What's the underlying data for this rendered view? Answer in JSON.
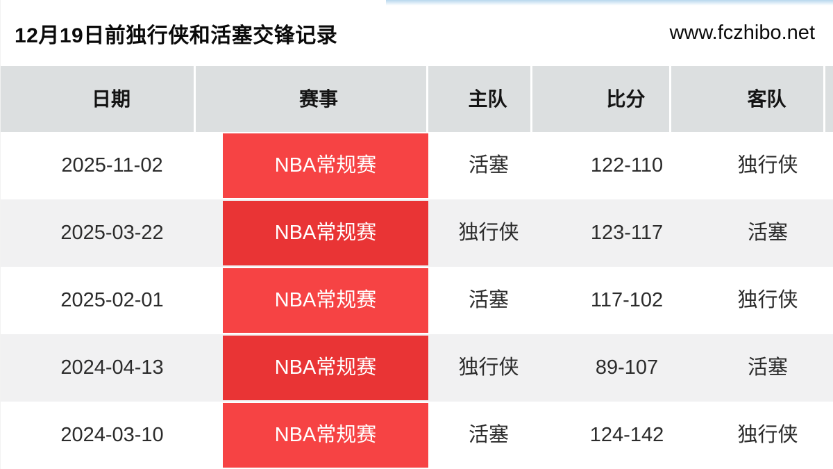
{
  "header": {
    "title": "12月19日前独行侠和活塞交锋记录",
    "site": "www.fczhibo.net"
  },
  "table": {
    "columns": [
      "日期",
      "赛事",
      "主队",
      "比分",
      "客队"
    ],
    "rows": [
      {
        "date": "2025-11-02",
        "event": "NBA常规赛",
        "home": "活塞",
        "score": "122-110",
        "away": "独行侠"
      },
      {
        "date": "2025-03-22",
        "event": "NBA常规赛",
        "home": "独行侠",
        "score": "123-117",
        "away": "活塞"
      },
      {
        "date": "2025-02-01",
        "event": "NBA常规赛",
        "home": "活塞",
        "score": "117-102",
        "away": "独行侠"
      },
      {
        "date": "2024-04-13",
        "event": "NBA常规赛",
        "home": "独行侠",
        "score": "89-107",
        "away": "活塞"
      },
      {
        "date": "2024-03-10",
        "event": "NBA常规赛",
        "home": "活塞",
        "score": "124-142",
        "away": "独行侠"
      }
    ]
  },
  "colors": {
    "badge_red_bright": "#f64344",
    "badge_red_dark": "#e93435",
    "header_row_bg": "#dcdfe0",
    "alt_row_bg": "#f1f1f2",
    "top_strip_blue": "#b7d7ee"
  }
}
